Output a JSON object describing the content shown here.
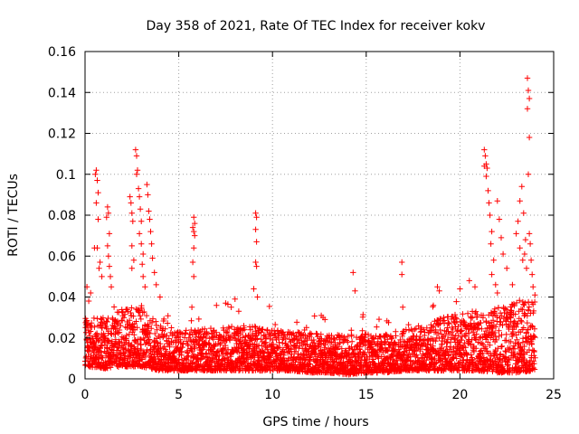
{
  "chart_data": {
    "type": "scatter",
    "title": "Day 358 of 2021, Rate Of TEC Index for receiver kokv",
    "xlabel": "GPS time / hours",
    "ylabel": "ROTI / TECUs",
    "xlim": [
      0,
      25
    ],
    "ylim": [
      0,
      0.16
    ],
    "xticks": [
      0,
      5,
      10,
      15,
      20,
      25
    ],
    "xtick_labels": [
      "0",
      "5",
      "10",
      "15",
      "20",
      "25"
    ],
    "yticks": [
      0,
      0.02,
      0.04,
      0.06,
      0.08,
      0.1,
      0.12,
      0.14,
      0.16
    ],
    "ytick_labels": [
      "0",
      "0.02",
      "0.04",
      "0.06",
      "0.08",
      "0.1",
      "0.12",
      "0.14",
      "0.16"
    ],
    "grid": true,
    "marker": "plus",
    "color": "#ff0000",
    "series": [
      {
        "name": "ROTI",
        "points": [
          [
            0.1,
            0.045
          ],
          [
            0.2,
            0.038
          ],
          [
            0.3,
            0.042
          ],
          [
            0.5,
            0.064
          ],
          [
            0.55,
            0.1
          ],
          [
            0.6,
            0.102
          ],
          [
            0.65,
            0.097
          ],
          [
            0.7,
            0.091
          ],
          [
            0.6,
            0.086
          ],
          [
            0.7,
            0.078
          ],
          [
            0.65,
            0.064
          ],
          [
            0.8,
            0.057
          ],
          [
            0.75,
            0.054
          ],
          [
            0.9,
            0.05
          ],
          [
            1.2,
            0.084
          ],
          [
            1.25,
            0.081
          ],
          [
            1.15,
            0.079
          ],
          [
            1.3,
            0.071
          ],
          [
            1.2,
            0.065
          ],
          [
            1.25,
            0.06
          ],
          [
            1.3,
            0.055
          ],
          [
            1.35,
            0.05
          ],
          [
            1.4,
            0.045
          ],
          [
            2.4,
            0.089
          ],
          [
            2.45,
            0.086
          ],
          [
            2.5,
            0.081
          ],
          [
            2.55,
            0.077
          ],
          [
            2.5,
            0.065
          ],
          [
            2.6,
            0.058
          ],
          [
            2.5,
            0.054
          ],
          [
            2.7,
            0.112
          ],
          [
            2.75,
            0.109
          ],
          [
            2.8,
            0.102
          ],
          [
            2.75,
            0.1
          ],
          [
            2.85,
            0.093
          ],
          [
            2.9,
            0.089
          ],
          [
            2.95,
            0.083
          ],
          [
            3.0,
            0.077
          ],
          [
            2.9,
            0.071
          ],
          [
            3.0,
            0.066
          ],
          [
            3.1,
            0.061
          ],
          [
            3.05,
            0.056
          ],
          [
            3.1,
            0.05
          ],
          [
            3.2,
            0.045
          ],
          [
            3.3,
            0.095
          ],
          [
            3.35,
            0.09
          ],
          [
            3.4,
            0.082
          ],
          [
            3.45,
            0.078
          ],
          [
            3.5,
            0.072
          ],
          [
            3.55,
            0.066
          ],
          [
            3.6,
            0.059
          ],
          [
            3.7,
            0.052
          ],
          [
            3.8,
            0.046
          ],
          [
            4.0,
            0.04
          ],
          [
            5.8,
            0.079
          ],
          [
            5.85,
            0.076
          ],
          [
            5.75,
            0.074
          ],
          [
            5.8,
            0.072
          ],
          [
            5.85,
            0.07
          ],
          [
            5.8,
            0.064
          ],
          [
            5.75,
            0.057
          ],
          [
            5.8,
            0.05
          ],
          [
            5.7,
            0.035
          ],
          [
            7.5,
            0.037
          ],
          [
            7.8,
            0.035
          ],
          [
            8.0,
            0.039
          ],
          [
            8.2,
            0.033
          ],
          [
            9.1,
            0.081
          ],
          [
            9.15,
            0.079
          ],
          [
            9.1,
            0.073
          ],
          [
            9.15,
            0.067
          ],
          [
            9.1,
            0.057
          ],
          [
            9.15,
            0.055
          ],
          [
            9.0,
            0.044
          ],
          [
            9.2,
            0.04
          ],
          [
            12.6,
            0.031
          ],
          [
            12.7,
            0.03
          ],
          [
            12.8,
            0.029
          ],
          [
            14.3,
            0.052
          ],
          [
            14.4,
            0.043
          ],
          [
            16.9,
            0.057
          ],
          [
            16.9,
            0.051
          ],
          [
            16.95,
            0.035
          ],
          [
            18.8,
            0.045
          ],
          [
            18.9,
            0.043
          ],
          [
            20.0,
            0.044
          ],
          [
            20.5,
            0.048
          ],
          [
            20.8,
            0.045
          ],
          [
            21.3,
            0.112
          ],
          [
            21.35,
            0.109
          ],
          [
            21.4,
            0.105
          ],
          [
            21.3,
            0.104
          ],
          [
            21.45,
            0.103
          ],
          [
            21.4,
            0.099
          ],
          [
            21.5,
            0.092
          ],
          [
            21.55,
            0.086
          ],
          [
            21.6,
            0.08
          ],
          [
            21.7,
            0.072
          ],
          [
            21.65,
            0.066
          ],
          [
            21.8,
            0.058
          ],
          [
            21.7,
            0.051
          ],
          [
            21.9,
            0.046
          ],
          [
            22.0,
            0.042
          ],
          [
            22.0,
            0.087
          ],
          [
            22.1,
            0.078
          ],
          [
            22.2,
            0.069
          ],
          [
            22.3,
            0.061
          ],
          [
            22.5,
            0.054
          ],
          [
            22.8,
            0.046
          ],
          [
            23.0,
            0.071
          ],
          [
            23.1,
            0.077
          ],
          [
            23.2,
            0.064
          ],
          [
            23.3,
            0.094
          ],
          [
            23.2,
            0.087
          ],
          [
            23.35,
            0.058
          ],
          [
            23.4,
            0.081
          ],
          [
            23.5,
            0.068
          ],
          [
            23.45,
            0.061
          ],
          [
            23.55,
            0.054
          ],
          [
            23.6,
            0.147
          ],
          [
            23.65,
            0.141
          ],
          [
            23.7,
            0.137
          ],
          [
            23.6,
            0.132
          ],
          [
            23.7,
            0.118
          ],
          [
            23.65,
            0.1
          ],
          [
            23.7,
            0.071
          ],
          [
            23.75,
            0.066
          ],
          [
            23.8,
            0.058
          ],
          [
            23.85,
            0.051
          ],
          [
            23.9,
            0.045
          ],
          [
            24.0,
            0.041
          ]
        ],
        "band": {
          "x_start": 0.0,
          "x_end": 24.0,
          "step": 0.02,
          "profile": [
            [
              0,
              0.006,
              0.032
            ],
            [
              1,
              0.005,
              0.03
            ],
            [
              2,
              0.006,
              0.034
            ],
            [
              3,
              0.006,
              0.036
            ],
            [
              4,
              0.004,
              0.026
            ],
            [
              5,
              0.004,
              0.024
            ],
            [
              6,
              0.004,
              0.024
            ],
            [
              7,
              0.004,
              0.026
            ],
            [
              8,
              0.004,
              0.026
            ],
            [
              9,
              0.004,
              0.026
            ],
            [
              10,
              0.004,
              0.024
            ],
            [
              11,
              0.004,
              0.023
            ],
            [
              12,
              0.003,
              0.023
            ],
            [
              13,
              0.003,
              0.022
            ],
            [
              14,
              0.002,
              0.021
            ],
            [
              15,
              0.003,
              0.022
            ],
            [
              16,
              0.003,
              0.022
            ],
            [
              17,
              0.004,
              0.024
            ],
            [
              18,
              0.004,
              0.026
            ],
            [
              19,
              0.004,
              0.03
            ],
            [
              20,
              0.004,
              0.032
            ],
            [
              21,
              0.004,
              0.034
            ],
            [
              22,
              0.003,
              0.036
            ],
            [
              23,
              0.003,
              0.038
            ],
            [
              24,
              0.004,
              0.04
            ]
          ]
        }
      }
    ]
  }
}
